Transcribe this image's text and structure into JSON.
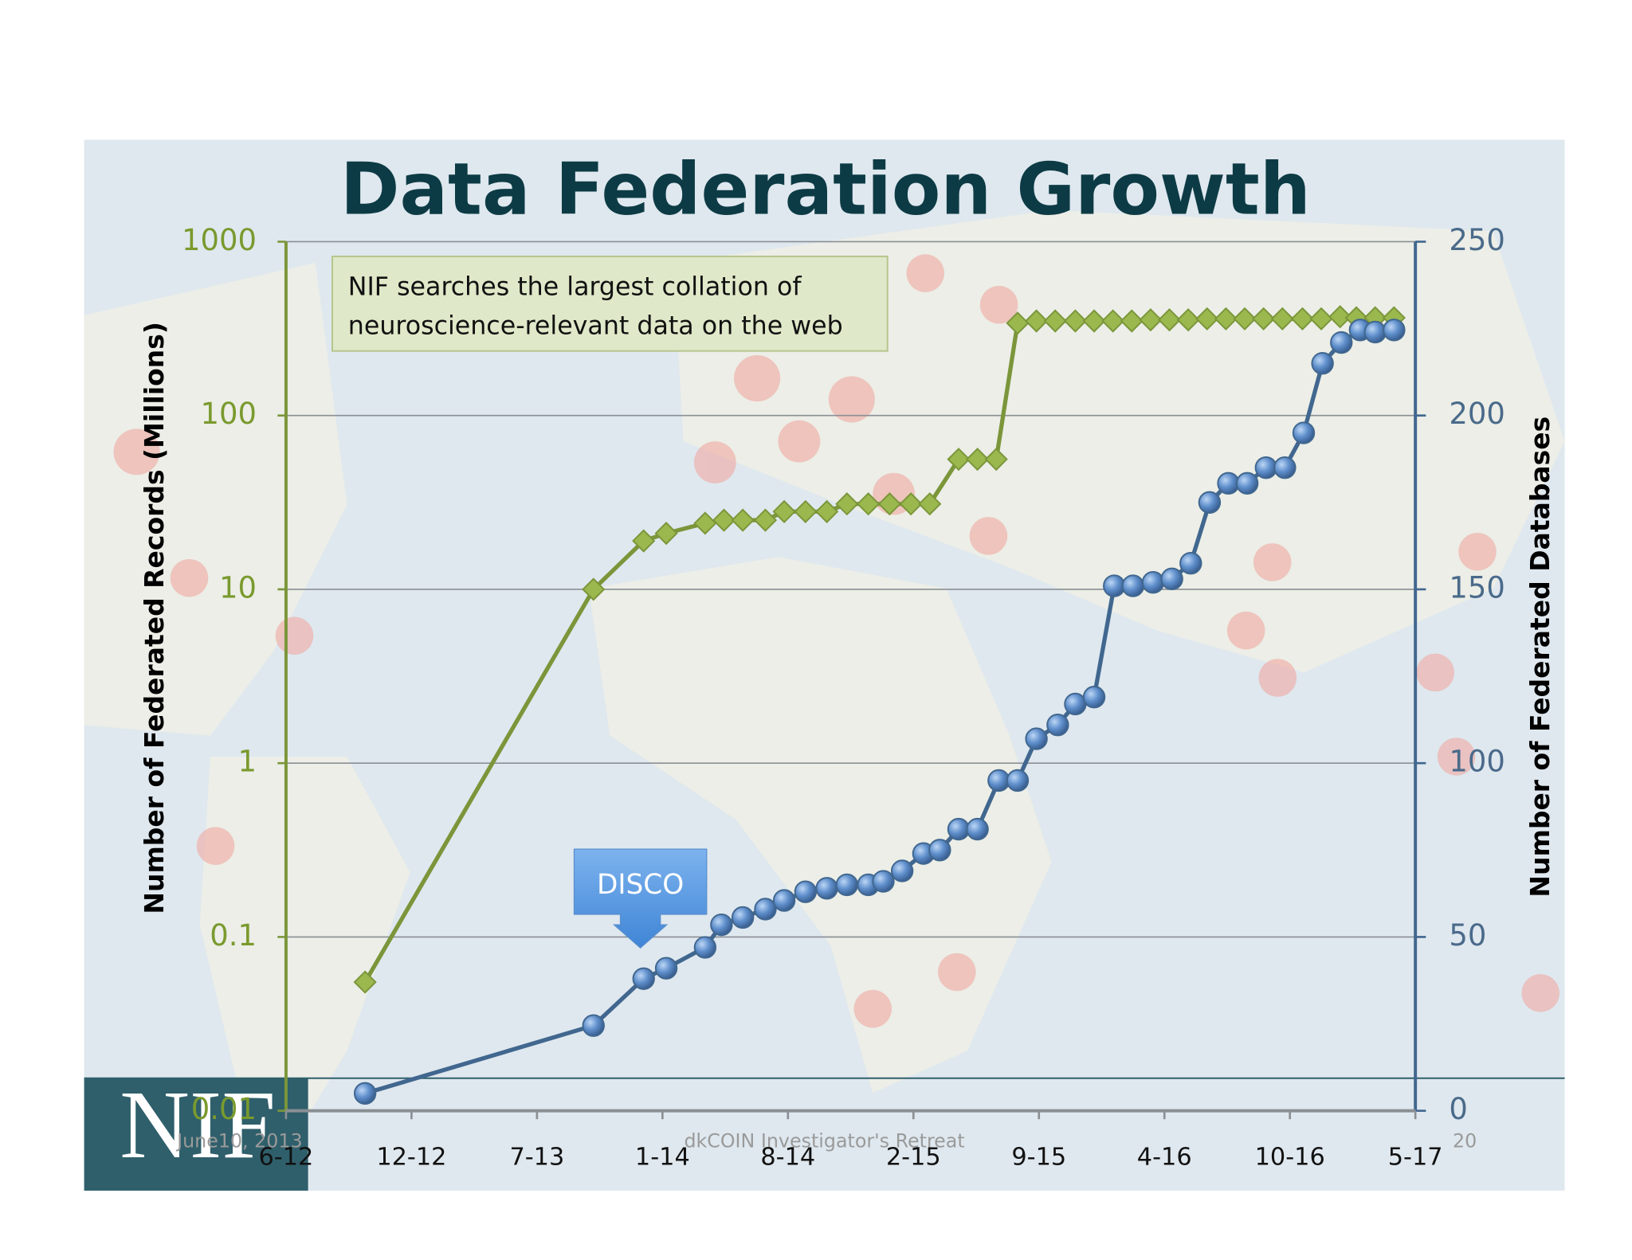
{
  "chart_data": {
    "type": "line",
    "title": "Data Federation Growth",
    "annotation": [
      "NIF searches the largest collation of",
      "neuroscience-relevant data on the web"
    ],
    "callout": "DISCO",
    "ylabel": "Number of Federated Records (Millions)",
    "y2label": "Number of Federated Databases",
    "footer": {
      "logo": "NIF",
      "date": "June10, 2013",
      "event": "dkCOIN Investigator's Retreat",
      "page": "20"
    },
    "xlim": [
      0,
      9
    ],
    "xticks": [
      {
        "value": 0,
        "label": "6-12"
      },
      {
        "value": 1,
        "label": "12-12"
      },
      {
        "value": 2,
        "label": "7-13"
      },
      {
        "value": 3,
        "label": "1-14"
      },
      {
        "value": 4,
        "label": "8-14"
      },
      {
        "value": 5,
        "label": "2-15"
      },
      {
        "value": 6,
        "label": "9-15"
      },
      {
        "value": 7,
        "label": "4-16"
      },
      {
        "value": 8,
        "label": "10-16"
      },
      {
        "value": 9,
        "label": "5-17"
      }
    ],
    "ylim": [
      0.01,
      1000
    ],
    "yticks": [
      0.01,
      0.1,
      1,
      10,
      100,
      1000
    ],
    "y_log": true,
    "y2lim": [
      0,
      250
    ],
    "y2ticks": [
      0,
      50,
      100,
      150,
      200,
      250
    ],
    "grid": true,
    "series": [
      {
        "color": "#7b963a",
        "marker": "diamond",
        "x": [
          0.63,
          2.45,
          2.85,
          3.03,
          3.34,
          3.49,
          3.64,
          3.82,
          3.97,
          4.14,
          4.31,
          4.47,
          4.64,
          4.81,
          4.98,
          5.13,
          5.36,
          5.51,
          5.66,
          5.83,
          5.98,
          6.13,
          6.29,
          6.44,
          6.59,
          6.74,
          6.89,
          7.04,
          7.19,
          7.34,
          7.49,
          7.64,
          7.79,
          7.94,
          8.1,
          8.25,
          8.4,
          8.53,
          8.68,
          8.83
        ],
        "values": [
          0.055,
          10,
          19,
          21,
          24,
          25,
          25,
          25,
          28,
          28,
          28,
          31,
          31,
          31,
          31,
          31,
          56,
          56,
          56,
          340,
          350,
          350,
          350,
          350,
          350,
          350,
          355,
          355,
          355,
          360,
          360,
          360,
          360,
          360,
          360,
          360,
          370,
          365,
          365,
          365
        ]
      },
      {
        "color": "#41678f",
        "marker": "circle",
        "axis": "y2",
        "x": [
          0.63,
          2.45,
          2.85,
          3.03,
          3.34,
          3.47,
          3.64,
          3.82,
          3.97,
          4.14,
          4.31,
          4.47,
          4.64,
          4.76,
          4.91,
          5.08,
          5.21,
          5.36,
          5.51,
          5.68,
          5.83,
          5.98,
          6.15,
          6.29,
          6.44,
          6.6,
          6.75,
          6.91,
          7.06,
          7.21,
          7.36,
          7.51,
          7.66,
          7.81,
          7.96,
          8.11,
          8.26,
          8.41,
          8.56,
          8.68,
          8.83
        ],
        "values": [
          5,
          24.5,
          38,
          41,
          47,
          53.5,
          55.6,
          58,
          60.5,
          63,
          64,
          65,
          65,
          66,
          69,
          74,
          75,
          81,
          81,
          95,
          95,
          107,
          111,
          117,
          119,
          151,
          151,
          152,
          153,
          157.5,
          175,
          180.5,
          180.5,
          185,
          185,
          195,
          215,
          221,
          224.6,
          224,
          224.6
        ]
      }
    ]
  }
}
